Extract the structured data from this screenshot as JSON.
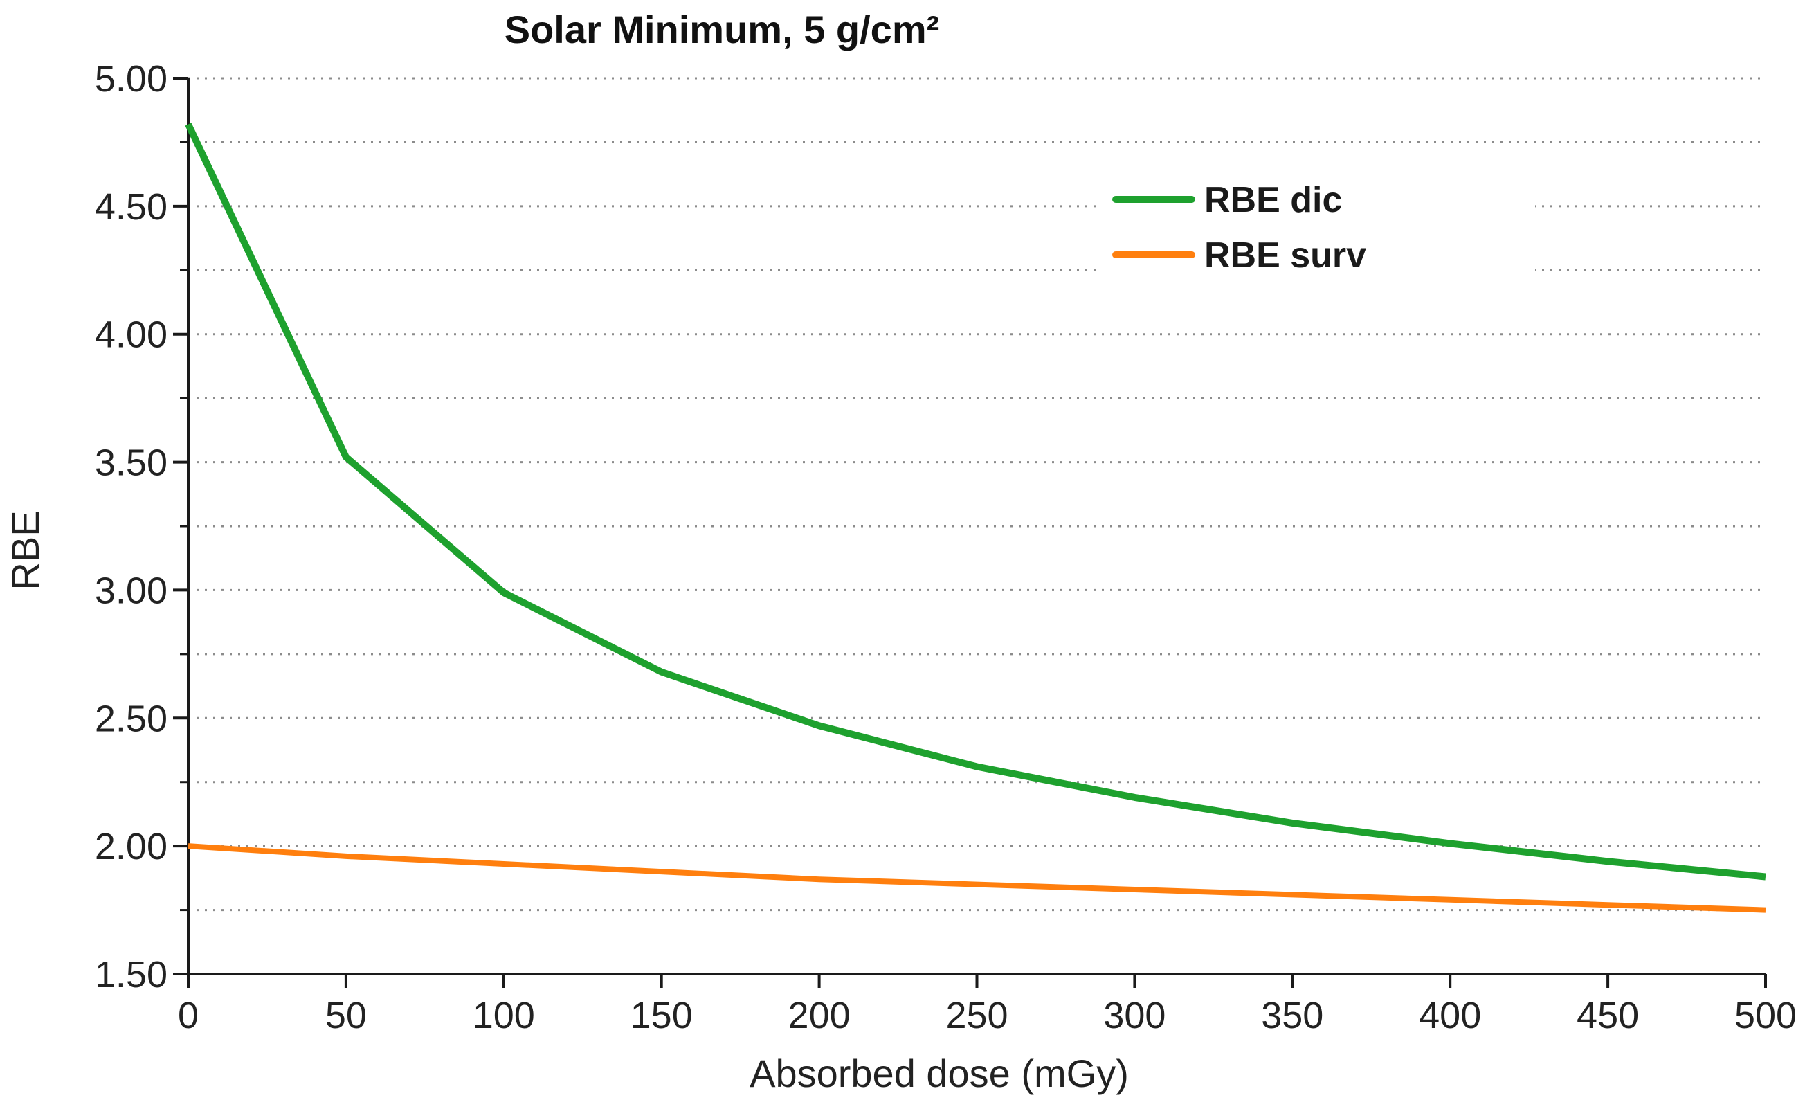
{
  "chart_data": {
    "type": "line",
    "title": "Solar Minimum, 5 g/cm²",
    "xlabel": "Absorbed dose (mGy)",
    "ylabel": "RBE",
    "x": [
      0,
      50,
      100,
      150,
      200,
      250,
      300,
      350,
      400,
      450,
      500
    ],
    "xlim": [
      0,
      500
    ],
    "ylim": [
      1.5,
      5.0
    ],
    "xticks": [
      "0",
      "50",
      "100",
      "150",
      "200",
      "250",
      "300",
      "350",
      "400",
      "450",
      "500"
    ],
    "yticks": [
      "1.50",
      "2.00",
      "2.50",
      "3.00",
      "3.50",
      "4.00",
      "4.50",
      "5.00"
    ],
    "grid": true,
    "grid_minor": true,
    "legend_position": "top-right",
    "series": [
      {
        "name": "RBE dic",
        "color": "#1ea12e",
        "values": [
          4.82,
          3.52,
          2.99,
          2.68,
          2.47,
          2.31,
          2.19,
          2.09,
          2.01,
          1.94,
          1.88
        ]
      },
      {
        "name": "RBE surv",
        "color": "#ff7f0e",
        "values": [
          2.0,
          1.96,
          1.93,
          1.9,
          1.87,
          1.85,
          1.83,
          1.81,
          1.79,
          1.77,
          1.75
        ]
      }
    ]
  }
}
